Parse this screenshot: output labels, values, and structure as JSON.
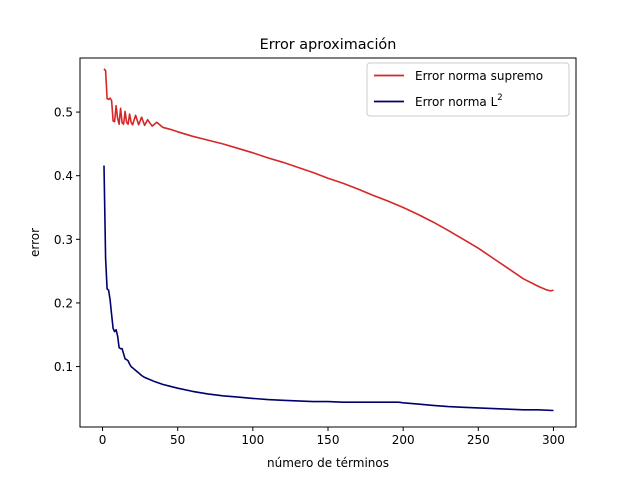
{
  "chart_data": {
    "type": "line",
    "title": "Error aproximación",
    "xlabel": "número de términos",
    "ylabel": "error",
    "xlim": [
      -15,
      315
    ],
    "ylim": [
      0.005,
      0.585
    ],
    "xticks": [
      0,
      50,
      100,
      150,
      200,
      250,
      300
    ],
    "xtick_labels": [
      "0",
      "50",
      "100",
      "150",
      "200",
      "250",
      "300"
    ],
    "yticks": [
      0.1,
      0.2,
      0.3,
      0.4,
      0.5
    ],
    "ytick_labels": [
      "0.1",
      "0.2",
      "0.3",
      "0.4",
      "0.5"
    ],
    "grid": false,
    "legend": {
      "position": "upper right"
    },
    "series": [
      {
        "name": "Error norma supremo",
        "color": "#d62728",
        "x": [
          1,
          2,
          3,
          4,
          5,
          6,
          7,
          8,
          9,
          10,
          11,
          12,
          13,
          14,
          15,
          16,
          17,
          18,
          19,
          20,
          22,
          24,
          26,
          28,
          30,
          33,
          36,
          40,
          45,
          50,
          60,
          70,
          80,
          90,
          100,
          110,
          120,
          130,
          140,
          150,
          160,
          170,
          180,
          190,
          200,
          210,
          220,
          230,
          240,
          250,
          260,
          270,
          280,
          290,
          295,
          298,
          300
        ],
        "values": [
          0.568,
          0.565,
          0.521,
          0.52,
          0.522,
          0.518,
          0.486,
          0.485,
          0.51,
          0.49,
          0.481,
          0.506,
          0.483,
          0.481,
          0.501,
          0.484,
          0.481,
          0.497,
          0.484,
          0.48,
          0.495,
          0.48,
          0.492,
          0.479,
          0.488,
          0.478,
          0.484,
          0.476,
          0.473,
          0.469,
          0.462,
          0.456,
          0.45,
          0.443,
          0.436,
          0.428,
          0.421,
          0.413,
          0.405,
          0.396,
          0.388,
          0.379,
          0.369,
          0.36,
          0.35,
          0.339,
          0.327,
          0.314,
          0.3,
          0.286,
          0.27,
          0.254,
          0.238,
          0.226,
          0.221,
          0.219,
          0.22
        ]
      },
      {
        "name": "Error norma $L^2$",
        "name_main": "Error norma L",
        "name_sup": "2",
        "color": "#00006f",
        "x": [
          1,
          2,
          3,
          4,
          5,
          6,
          7,
          8,
          9,
          10,
          11,
          12,
          13,
          14,
          15,
          16,
          17,
          18,
          19,
          20,
          22,
          24,
          26,
          28,
          30,
          35,
          40,
          45,
          50,
          60,
          70,
          80,
          90,
          100,
          110,
          120,
          130,
          140,
          150,
          160,
          170,
          180,
          190,
          197,
          200,
          210,
          220,
          230,
          240,
          250,
          260,
          270,
          280,
          290,
          300
        ],
        "values": [
          0.416,
          0.27,
          0.222,
          0.22,
          0.205,
          0.182,
          0.16,
          0.155,
          0.158,
          0.148,
          0.13,
          0.128,
          0.128,
          0.12,
          0.112,
          0.111,
          0.109,
          0.104,
          0.1,
          0.098,
          0.094,
          0.09,
          0.086,
          0.083,
          0.081,
          0.076,
          0.072,
          0.069,
          0.066,
          0.061,
          0.057,
          0.054,
          0.052,
          0.05,
          0.048,
          0.047,
          0.046,
          0.045,
          0.045,
          0.044,
          0.044,
          0.044,
          0.044,
          0.044,
          0.043,
          0.041,
          0.039,
          0.037,
          0.036,
          0.035,
          0.034,
          0.033,
          0.032,
          0.032,
          0.031
        ]
      }
    ]
  }
}
